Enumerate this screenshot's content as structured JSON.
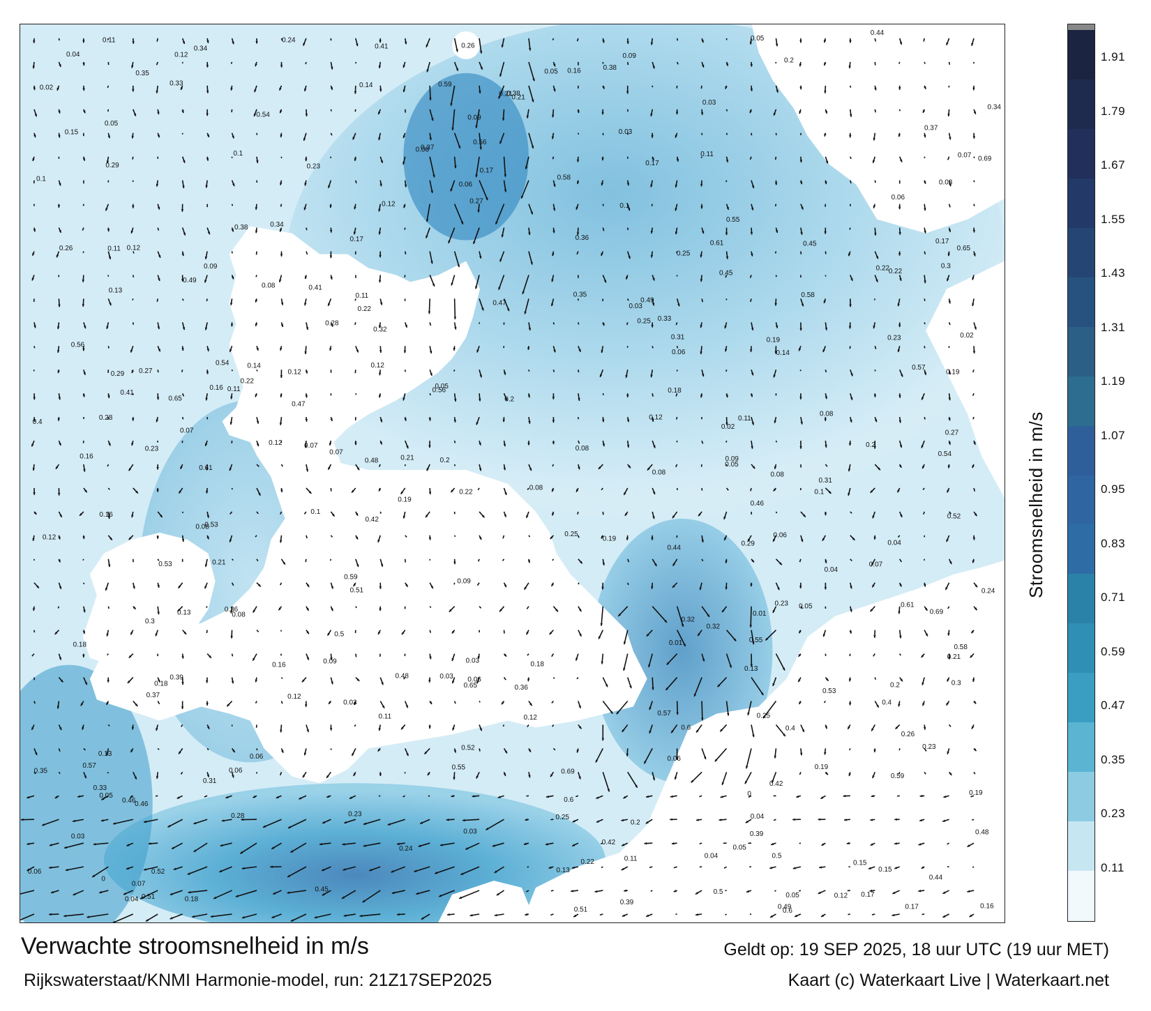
{
  "footer": {
    "title": "Verwachte stroomsnelheid in m/s",
    "valid": "Geldt op: 19 SEP 2025, 18 uur UTC (19 uur MET)",
    "model": "Rijkswaterstaat/KNMI Harmonie-model, run: 21Z17SEP2025",
    "credit": "Kaart (c) Waterkaart Live | Waterkaart.net"
  },
  "colorbar": {
    "label": "Stroomsnelheid in m/s",
    "ticks": [
      "1.91",
      "1.79",
      "1.67",
      "1.55",
      "1.43",
      "1.31",
      "1.19",
      "1.07",
      "0.95",
      "0.83",
      "0.71",
      "0.59",
      "0.47",
      "0.35",
      "0.23",
      "0.11"
    ],
    "colors": [
      "#1b2440",
      "#1e2a4e",
      "#212f5a",
      "#233a68",
      "#254675",
      "#27527f",
      "#2b5f86",
      "#2d6d8f",
      "#2f5f9a",
      "#2f66a2",
      "#2e6ca6",
      "#2b82a8",
      "#2f8fb4",
      "#3a9ec2",
      "#5ab4d2",
      "#8ccbe2",
      "#c6e6f2",
      "#f2f9fc"
    ]
  },
  "map": {
    "land_color": "#ffffff",
    "sea_colors": [
      "#e8f5fa",
      "#c9e6f2",
      "#9fd2e8",
      "#6cb8da",
      "#3d9ccb",
      "#2a7fb5",
      "#25649e"
    ],
    "labels": [
      {
        "v": "0.09"
      },
      {
        "v": "0.11"
      },
      {
        "v": "0.12"
      },
      {
        "v": "0.06"
      },
      {
        "v": "0.17"
      },
      {
        "v": "0.23"
      },
      {
        "v": "0.03"
      },
      {
        "v": "0.1"
      },
      {
        "v": "0.09"
      },
      {
        "v": "0.11"
      },
      {
        "v": "0.08"
      },
      {
        "v": "0.05"
      },
      {
        "v": "0.04"
      },
      {
        "v": "0.05"
      },
      {
        "v": "0.07"
      },
      {
        "v": "0.06"
      },
      {
        "v": "0.08"
      },
      {
        "v": "0.02"
      },
      {
        "v": "0.03"
      },
      {
        "v": "0.12"
      },
      {
        "v": "0.12"
      },
      {
        "v": "0.22"
      },
      {
        "v": "0.2"
      },
      {
        "v": "0.16"
      },
      {
        "v": "0.19"
      },
      {
        "v": "0.18"
      },
      {
        "v": "0.25"
      },
      {
        "v": "0.13"
      },
      {
        "v": "0.45"
      },
      {
        "v": "0.57"
      },
      {
        "v": "0.5"
      },
      {
        "v": "0.48"
      },
      {
        "v": "0.46"
      },
      {
        "v": "0.4"
      },
      {
        "v": "0.55"
      },
      {
        "v": "0.56"
      },
      {
        "v": "0.27"
      },
      {
        "v": "0.34"
      },
      {
        "v": "0.21"
      },
      {
        "v": "0.23"
      },
      {
        "v": "0.16"
      },
      {
        "v": "0.15"
      },
      {
        "v": "0.07"
      },
      {
        "v": "0.04"
      },
      {
        "v": "0.06"
      },
      {
        "v": "0.05"
      },
      {
        "v": "0.03"
      },
      {
        "v": "0.08"
      },
      {
        "v": "0.24"
      },
      {
        "v": "0.17"
      },
      {
        "v": "0.22"
      },
      {
        "v": "0.14"
      },
      {
        "v": "0.19"
      },
      {
        "v": "0.2"
      },
      {
        "v": "0.3"
      },
      {
        "v": "0.33"
      },
      {
        "v": "0.28"
      },
      {
        "v": "0.35"
      },
      {
        "v": "0.39"
      },
      {
        "v": "0.31"
      },
      {
        "v": "0.38"
      },
      {
        "v": "0.37"
      },
      {
        "v": "0.26"
      },
      {
        "v": "0.29"
      },
      {
        "v": "0.42"
      },
      {
        "v": "0.41"
      },
      {
        "v": "0.44"
      },
      {
        "v": "0.36"
      },
      {
        "v": "0.32"
      },
      {
        "v": "0.51"
      },
      {
        "v": "0.53"
      },
      {
        "v": "0.54"
      },
      {
        "v": "0.52"
      },
      {
        "v": "0.58"
      },
      {
        "v": "0.59"
      },
      {
        "v": "0.6"
      },
      {
        "v": "0.61"
      },
      {
        "v": "0.65"
      },
      {
        "v": "0.69"
      },
      {
        "v": "0.49"
      },
      {
        "v": "0.47"
      },
      {
        "v": "0"
      },
      {
        "v": "0.01"
      },
      {
        "v": "0.1"
      },
      {
        "v": "0.13"
      },
      {
        "v": "0.18"
      },
      {
        "v": "0.21"
      },
      {
        "v": "0.25"
      },
      {
        "v": "0.11"
      },
      {
        "v": "0.12"
      }
    ]
  }
}
